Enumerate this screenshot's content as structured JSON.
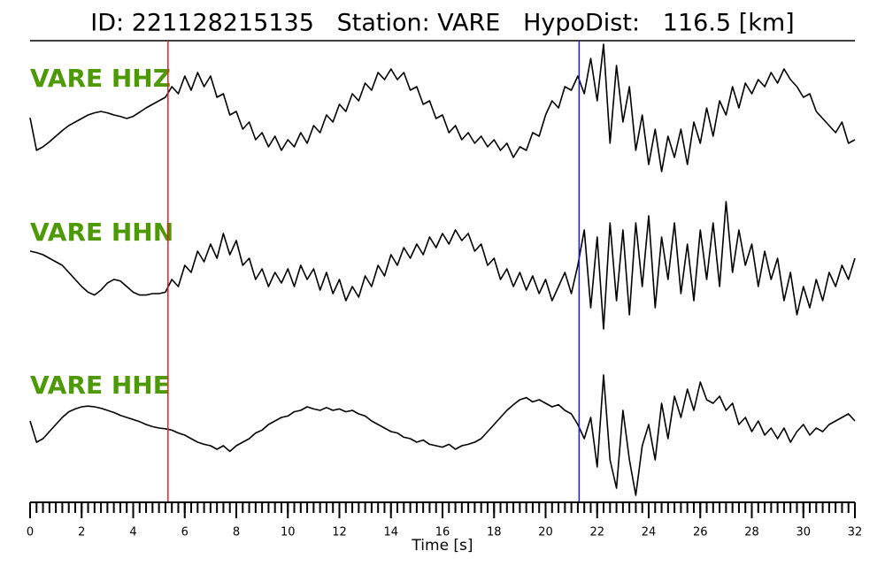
{
  "chart_data": {
    "type": "line",
    "title": "ID: 221128215135   Station: VARE   HypoDist:   116.5 [km]",
    "xlabel": "Time [s]",
    "xlim": [
      0,
      32
    ],
    "xticks": [
      0,
      2,
      4,
      6,
      8,
      10,
      12,
      14,
      16,
      18,
      20,
      22,
      24,
      26,
      28,
      30,
      32
    ],
    "xminor": 0.25,
    "label_color": "#4e9a06",
    "markers": [
      {
        "x": 5.35,
        "color": "#e02020"
      },
      {
        "x": 21.3,
        "color": "#1a1ae6"
      }
    ],
    "x": [
      0,
      0.25,
      0.5,
      0.75,
      1,
      1.25,
      1.5,
      1.75,
      2,
      2.25,
      2.5,
      2.75,
      3,
      3.25,
      3.5,
      3.75,
      4,
      4.25,
      4.5,
      4.75,
      5,
      5.25,
      5.5,
      5.75,
      6,
      6.25,
      6.5,
      6.75,
      7,
      7.25,
      7.5,
      7.75,
      8,
      8.25,
      8.5,
      8.75,
      9,
      9.25,
      9.5,
      9.75,
      10,
      10.25,
      10.5,
      10.75,
      11,
      11.25,
      11.5,
      11.75,
      12,
      12.25,
      12.5,
      12.75,
      13,
      13.25,
      13.5,
      13.75,
      14,
      14.25,
      14.5,
      14.75,
      15,
      15.25,
      15.5,
      15.75,
      16,
      16.25,
      16.5,
      16.75,
      17,
      17.25,
      17.5,
      17.75,
      18,
      18.25,
      18.5,
      18.75,
      19,
      19.25,
      19.5,
      19.75,
      20,
      20.25,
      20.5,
      20.75,
      21,
      21.25,
      21.5,
      21.75,
      22,
      22.25,
      22.5,
      22.75,
      23,
      23.25,
      23.5,
      23.75,
      24,
      24.25,
      24.5,
      24.75,
      25,
      25.25,
      25.5,
      25.75,
      26,
      26.25,
      26.5,
      26.75,
      27,
      27.25,
      27.5,
      27.75,
      28,
      28.25,
      28.5,
      28.75,
      29,
      29.25,
      29.5,
      29.75,
      30,
      30.25,
      30.5,
      30.75,
      31,
      31.25,
      31.5,
      31.75,
      32
    ],
    "series": [
      {
        "name": "VARE HHZ",
        "color": "#000000",
        "values": [
          -0.14,
          -0.6,
          -0.55,
          -0.48,
          -0.4,
          -0.32,
          -0.25,
          -0.2,
          -0.15,
          -0.1,
          -0.07,
          -0.05,
          -0.07,
          -0.1,
          -0.12,
          -0.15,
          -0.12,
          -0.06,
          0,
          0.05,
          0.1,
          0.15,
          0.3,
          0.2,
          0.45,
          0.25,
          0.5,
          0.3,
          0.45,
          0.15,
          0.2,
          -0.1,
          -0.05,
          -0.3,
          -0.2,
          -0.45,
          -0.35,
          -0.55,
          -0.4,
          -0.6,
          -0.45,
          -0.55,
          -0.35,
          -0.5,
          -0.25,
          -0.35,
          -0.1,
          -0.2,
          0.05,
          -0.05,
          0.2,
          0.1,
          0.35,
          0.25,
          0.5,
          0.4,
          0.55,
          0.4,
          0.5,
          0.25,
          0.3,
          0.05,
          0.1,
          -0.15,
          -0.1,
          -0.35,
          -0.25,
          -0.45,
          -0.35,
          -0.5,
          -0.4,
          -0.55,
          -0.45,
          -0.6,
          -0.5,
          -0.7,
          -0.55,
          -0.6,
          -0.35,
          -0.4,
          -0.1,
          0.1,
          0,
          0.3,
          0.25,
          0.45,
          0.2,
          0.7,
          0.1,
          0.9,
          -0.5,
          0.6,
          -0.2,
          0.3,
          -0.6,
          -0.1,
          -0.8,
          -0.3,
          -0.9,
          -0.4,
          -0.7,
          -0.3,
          -0.8,
          -0.2,
          -0.5,
          0,
          -0.4,
          0.1,
          -0.1,
          0.3,
          0,
          0.35,
          0.2,
          0.4,
          0.3,
          0.5,
          0.35,
          0.55,
          0.4,
          0.3,
          0.15,
          0.2,
          -0.05,
          -0.15,
          -0.25,
          -0.35,
          -0.2,
          -0.5,
          -0.45
        ]
      },
      {
        "name": "VARE HHN",
        "color": "#000000",
        "values": [
          0.2,
          0.18,
          0.15,
          0.1,
          0.05,
          0,
          -0.1,
          -0.2,
          -0.3,
          -0.38,
          -0.42,
          -0.35,
          -0.25,
          -0.2,
          -0.22,
          -0.3,
          -0.38,
          -0.42,
          -0.42,
          -0.4,
          -0.4,
          -0.38,
          -0.2,
          -0.3,
          0,
          -0.1,
          0.2,
          0.05,
          0.3,
          0.1,
          0.45,
          0.15,
          0.35,
          0,
          0.1,
          -0.2,
          -0.05,
          -0.3,
          -0.1,
          -0.25,
          -0.05,
          -0.3,
          0,
          -0.2,
          -0.05,
          -0.35,
          -0.1,
          -0.4,
          -0.2,
          -0.5,
          -0.3,
          -0.45,
          -0.15,
          -0.3,
          0,
          -0.15,
          0.15,
          0,
          0.25,
          0.1,
          0.3,
          0.15,
          0.4,
          0.25,
          0.45,
          0.3,
          0.5,
          0.35,
          0.45,
          0.2,
          0.3,
          0,
          0.1,
          -0.2,
          -0.05,
          -0.3,
          -0.1,
          -0.35,
          -0.15,
          -0.4,
          -0.2,
          -0.5,
          -0.3,
          -0.1,
          -0.4,
          0,
          0.5,
          -0.6,
          0.4,
          -0.9,
          0.6,
          -0.5,
          0.5,
          -0.7,
          0.6,
          -0.3,
          0.7,
          -0.6,
          0.4,
          -0.2,
          0.6,
          -0.4,
          0.3,
          -0.5,
          0.5,
          -0.2,
          0.6,
          -0.3,
          0.9,
          -0.1,
          0.5,
          0,
          0.3,
          -0.3,
          0.2,
          -0.2,
          0.1,
          -0.5,
          -0.1,
          -0.7,
          -0.3,
          -0.6,
          -0.2,
          -0.5,
          -0.1,
          -0.3,
          0,
          -0.2,
          0.1
        ]
      },
      {
        "name": "VARE HHE",
        "color": "#000000",
        "values": [
          0.05,
          -0.25,
          -0.2,
          -0.1,
          0,
          0.1,
          0.18,
          0.22,
          0.25,
          0.26,
          0.25,
          0.23,
          0.2,
          0.17,
          0.13,
          0.1,
          0.07,
          0.04,
          0,
          -0.03,
          -0.05,
          -0.06,
          -0.08,
          -0.12,
          -0.15,
          -0.2,
          -0.25,
          -0.28,
          -0.3,
          -0.35,
          -0.3,
          -0.38,
          -0.3,
          -0.25,
          -0.2,
          -0.12,
          -0.08,
          0,
          0.05,
          0.1,
          0.12,
          0.18,
          0.2,
          0.25,
          0.22,
          0.2,
          0.24,
          0.2,
          0.22,
          0.18,
          0.2,
          0.15,
          0.12,
          0.05,
          0,
          -0.05,
          -0.1,
          -0.12,
          -0.18,
          -0.2,
          -0.25,
          -0.22,
          -0.28,
          -0.3,
          -0.32,
          -0.28,
          -0.35,
          -0.3,
          -0.28,
          -0.25,
          -0.2,
          -0.1,
          0,
          0.1,
          0.2,
          0.28,
          0.35,
          0.38,
          0.32,
          0.35,
          0.3,
          0.25,
          0.28,
          0.2,
          0.15,
          0,
          -0.2,
          0.1,
          -0.6,
          0.7,
          -0.5,
          -0.9,
          0.2,
          -0.5,
          -1,
          -0.3,
          0,
          -0.5,
          0.3,
          -0.2,
          0.4,
          0.1,
          0.5,
          0.2,
          0.6,
          0.35,
          0.3,
          0.4,
          0.2,
          0.3,
          0,
          0.1,
          -0.1,
          0.05,
          -0.15,
          -0.05,
          -0.2,
          -0.05,
          -0.25,
          -0.1,
          0,
          -0.15,
          -0.05,
          -0.1,
          0,
          0.05,
          0.1,
          0.15,
          0.05
        ]
      }
    ]
  }
}
